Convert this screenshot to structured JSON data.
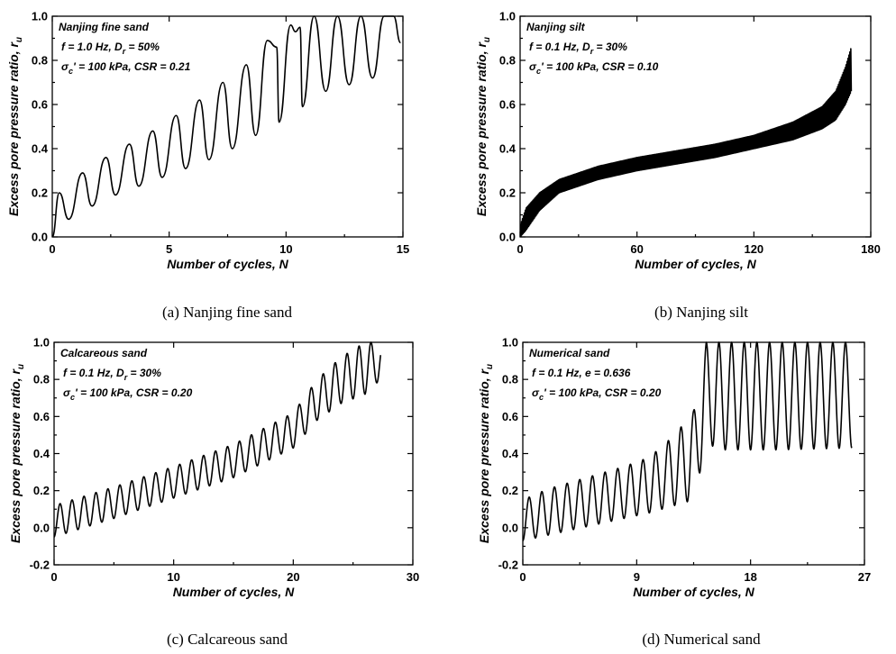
{
  "chart_data": [
    {
      "type": "line",
      "caption": "(a) Nanjing fine sand",
      "xlabel": "Number of cycles, N",
      "ylabel": "Excess pore pressure ratio, r",
      "ylabel_sub": "u",
      "xlim": [
        0,
        15
      ],
      "ylim": [
        0.0,
        1.0
      ],
      "xticks": [
        0,
        5,
        10,
        15
      ],
      "yticks": [
        0.0,
        0.2,
        0.4,
        0.6,
        0.8,
        1.0
      ],
      "ytick_labels": [
        "0.0",
        "0.2",
        "0.4",
        "0.6",
        "0.8",
        "1.0"
      ],
      "annotations": [
        "Nanjing fine sand",
        "f = 1.0 Hz, D_r = 50%",
        "σ_c' = 100 kPa, CSR = 0.21"
      ],
      "series": [
        {
          "x": [
            0,
            0.3,
            0.7,
            1.3,
            1.7,
            2.3,
            2.7,
            3.3,
            3.7,
            4.3,
            4.7,
            5.3,
            5.7,
            6.3,
            6.7,
            7.3,
            7.7,
            8.3,
            8.7,
            9.2,
            9.6,
            9.7,
            10.2,
            10.4,
            10.6,
            10.7,
            11.2,
            11.7,
            12.2,
            12.7,
            13.2,
            13.7,
            14.2,
            14.6,
            14.9
          ],
          "y": [
            0.0,
            0.2,
            0.08,
            0.29,
            0.14,
            0.36,
            0.19,
            0.42,
            0.23,
            0.48,
            0.27,
            0.55,
            0.31,
            0.62,
            0.35,
            0.7,
            0.4,
            0.78,
            0.46,
            0.89,
            0.86,
            0.52,
            0.96,
            0.93,
            0.95,
            0.59,
            1.0,
            0.66,
            1.0,
            0.69,
            1.0,
            0.72,
            1.0,
            1.0,
            0.88
          ]
        }
      ]
    },
    {
      "type": "line",
      "caption": "(b) Nanjing silt",
      "xlabel": "Number of cycles, N",
      "ylabel": "Excess pore pressure ratio, r",
      "ylabel_sub": "u",
      "xlim": [
        0,
        180
      ],
      "ylim": [
        0.0,
        1.0
      ],
      "xticks": [
        0,
        60,
        120,
        180
      ],
      "yticks": [
        0.0,
        0.2,
        0.4,
        0.6,
        0.8,
        1.0
      ],
      "ytick_labels": [
        "0.0",
        "0.2",
        "0.4",
        "0.6",
        "0.8",
        "1.0"
      ],
      "annotations": [
        "Nanjing silt",
        "f = 0.1 Hz, D_r = 30%",
        "σ_c' = 100 kPa, CSR = 0.10"
      ],
      "series": [
        {
          "x": [
            0,
            3,
            10,
            20,
            40,
            60,
            80,
            100,
            120,
            140,
            155,
            162,
            167,
            170
          ],
          "y": [
            0.0,
            0.08,
            0.16,
            0.23,
            0.29,
            0.33,
            0.36,
            0.39,
            0.43,
            0.48,
            0.54,
            0.6,
            0.7,
            0.8
          ],
          "y_upper": [
            0.05,
            0.13,
            0.2,
            0.26,
            0.32,
            0.36,
            0.39,
            0.42,
            0.46,
            0.52,
            0.59,
            0.66,
            0.77,
            0.86
          ],
          "y_lower": [
            0.0,
            0.03,
            0.12,
            0.2,
            0.26,
            0.3,
            0.33,
            0.36,
            0.4,
            0.44,
            0.49,
            0.53,
            0.6,
            0.66
          ]
        }
      ]
    },
    {
      "type": "line",
      "caption": "(c) Calcareous sand",
      "xlabel": "Number of cycles, N",
      "ylabel": "Excess pore pressure ratio, r",
      "ylabel_sub": "u",
      "xlim": [
        0,
        30
      ],
      "ylim": [
        -0.2,
        1.0
      ],
      "xticks": [
        0,
        10,
        20,
        30
      ],
      "yticks": [
        -0.2,
        0.0,
        0.2,
        0.4,
        0.6,
        0.8,
        1.0
      ],
      "ytick_labels": [
        "-0.2",
        "0.0",
        "0.2",
        "0.4",
        "0.6",
        "0.8",
        "1.0"
      ],
      "annotations": [
        "Calcareous sand",
        "f = 0.1 Hz, D_r = 30%",
        "σ_c' = 100 kPa, CSR = 0.20"
      ],
      "series": [
        {
          "x": [
            0,
            5,
            10,
            15,
            20,
            22,
            24,
            26,
            27.3
          ],
          "y_upper": [
            0.12,
            0.22,
            0.33,
            0.45,
            0.62,
            0.8,
            0.92,
            1.0,
            1.0
          ],
          "y_lower": [
            -0.05,
            0.05,
            0.16,
            0.27,
            0.43,
            0.58,
            0.67,
            0.72,
            0.8
          ]
        }
      ]
    },
    {
      "type": "line",
      "caption": "(d) Numerical sand",
      "xlabel": "Number of cycles, N",
      "ylabel": "Excess pore pressure ratio, r",
      "ylabel_sub": "u",
      "xlim": [
        0,
        27
      ],
      "ylim": [
        -0.2,
        1.0
      ],
      "xticks": [
        0,
        9,
        18,
        27
      ],
      "yticks": [
        -0.2,
        0.0,
        0.2,
        0.4,
        0.6,
        0.8,
        1.0
      ],
      "ytick_labels": [
        "-0.2",
        "0.0",
        "0.2",
        "0.4",
        "0.6",
        "0.8",
        "1.0"
      ],
      "annotations": [
        "Numerical sand",
        "f = 0.1 Hz, e = 0.636",
        "σ_c' = 100 kPa, CSR = 0.20"
      ],
      "series": [
        {
          "x": [
            0,
            2,
            4,
            6,
            8,
            10,
            12,
            13.5,
            14.5,
            16,
            20,
            26
          ],
          "y_upper": [
            0.15,
            0.21,
            0.25,
            0.29,
            0.33,
            0.38,
            0.5,
            0.63,
            1.0,
            1.0,
            1.0,
            1.0
          ],
          "y_lower": [
            -0.07,
            -0.04,
            -0.01,
            0.02,
            0.05,
            0.08,
            0.12,
            0.15,
            0.45,
            0.42,
            0.42,
            0.43
          ]
        }
      ]
    }
  ]
}
